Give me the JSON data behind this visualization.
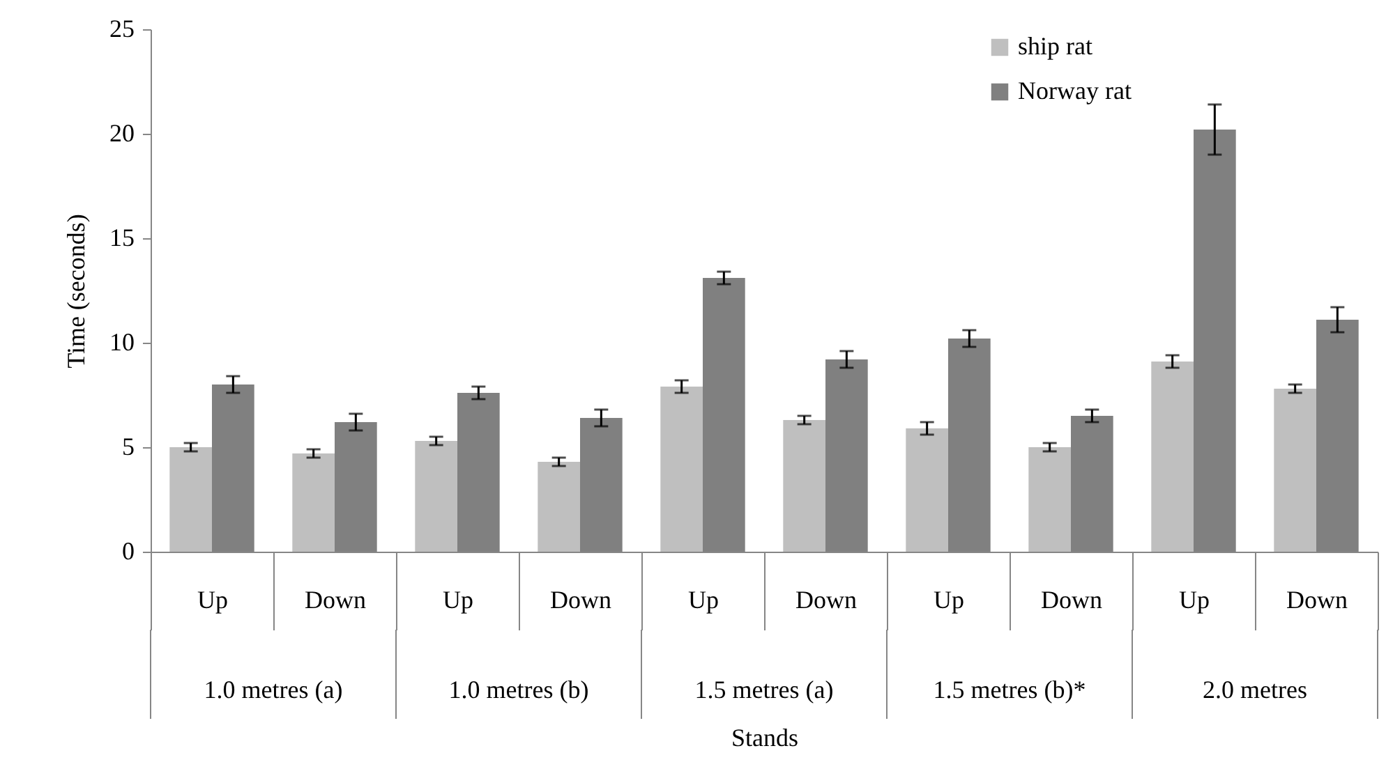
{
  "chart_data": {
    "type": "bar",
    "xlabel": "Stands",
    "ylabel": "Time (seconds)",
    "categories": [
      "Up",
      "Down",
      "Up",
      "Down",
      "Up",
      "Down",
      "Up",
      "Down",
      "Up",
      "Down"
    ],
    "annotations": [
      "1.0 metres (a)",
      "1.0  metres (b)",
      "1.5 metres (a)",
      "1.5 metres (b)*",
      "2.0 metres"
    ],
    "series": [
      {
        "name": "ship rat",
        "color": "#bfbfbf",
        "values": [
          5.0,
          4.7,
          5.3,
          4.3,
          7.9,
          6.3,
          5.9,
          5.0,
          9.1,
          7.8
        ],
        "errors": [
          0.2,
          0.2,
          0.2,
          0.2,
          0.3,
          0.2,
          0.3,
          0.2,
          0.3,
          0.2
        ]
      },
      {
        "name": "Norway rat",
        "color": "#808080",
        "values": [
          8.0,
          6.2,
          7.6,
          6.4,
          13.1,
          9.2,
          10.2,
          6.5,
          20.2,
          11.1
        ],
        "errors": [
          0.4,
          0.4,
          0.3,
          0.4,
          0.3,
          0.4,
          0.4,
          0.3,
          1.2,
          0.6
        ]
      }
    ],
    "ylim": [
      0,
      25
    ],
    "yticks": [
      0,
      5,
      10,
      15,
      20,
      25
    ],
    "grid": false,
    "legend": "top right"
  }
}
